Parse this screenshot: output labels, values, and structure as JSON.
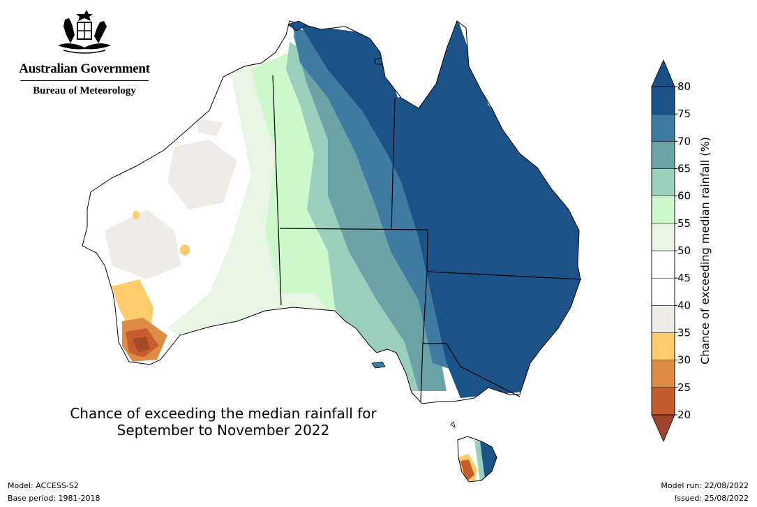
{
  "header": {
    "government": "Australian Government",
    "bureau": "Bureau of Meteorology",
    "crest": "australian-coat-of-arms"
  },
  "map": {
    "title_line1": "Chance of exceeding the median rainfall for",
    "title_line2": "September to November 2022"
  },
  "colorbar": {
    "title": "Chance of exceeding median rainfall (%)",
    "ticks": [
      "20",
      "25",
      "30",
      "35",
      "40",
      "45",
      "50",
      "55",
      "60",
      "65",
      "70",
      "75",
      "80"
    ],
    "colors": [
      "#a64a25",
      "#c75c2e",
      "#dc8c45",
      "#fecb6a",
      "#efebe6",
      "#ffffff",
      "#ffffff",
      "#e8f5e5",
      "#ccf8cc",
      "#99cfbb",
      "#6ba3a7",
      "#3e7aa1",
      "#1b5288"
    ],
    "extend_low_color": "#a0432a",
    "extend_high_color": "#174e86"
  },
  "footer": {
    "model": "Model: ACCESS-S2",
    "base_period": "Base period: 1981-2018",
    "model_run": "Model run: 22/08/2022",
    "issued": "Issued: 25/08/2022"
  }
}
